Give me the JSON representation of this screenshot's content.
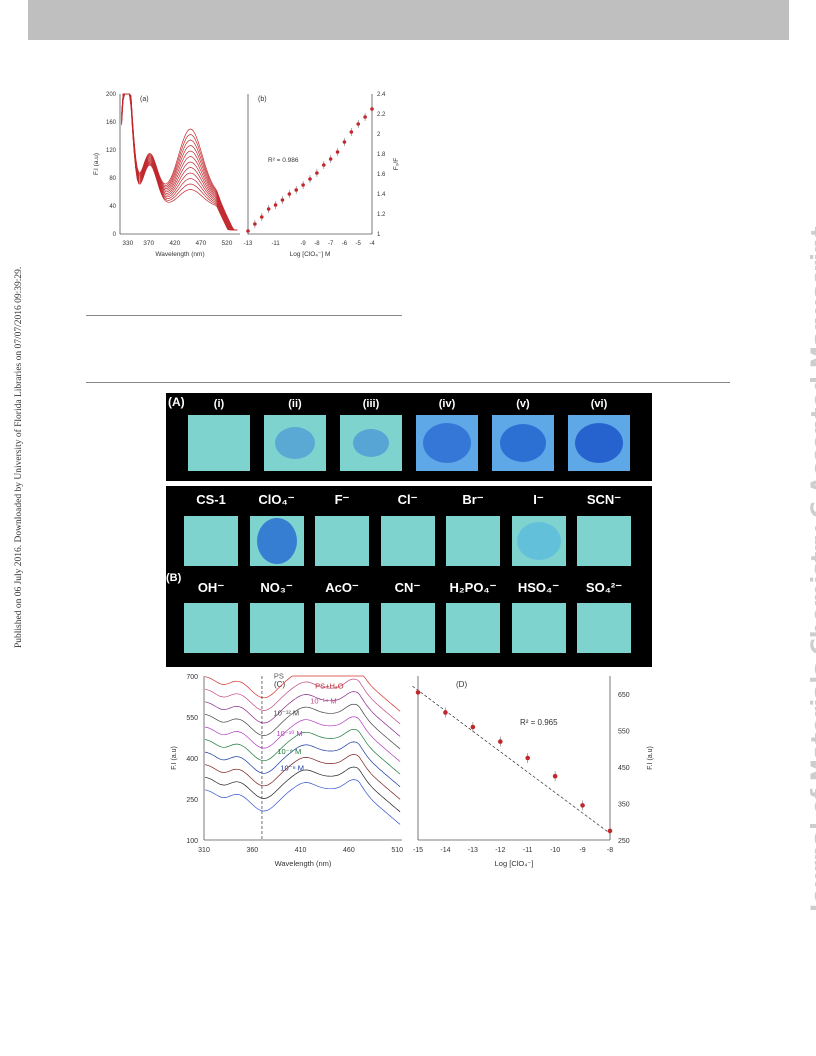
{
  "sidebar": {
    "published_note": "Published on 06 July 2016. Downloaded by University of Florida Libraries on 07/07/2016 09:39:29.",
    "journal_watermark": "Journal of Materials Chemistry C Accepted Manuscript"
  },
  "colors": {
    "header_bar": "#bfbfbf",
    "series_red": "#c0282d",
    "tile_cyan": "#7fd3cf",
    "spot_blue": "#3b87d9"
  },
  "figure_top": {
    "panel_a": {
      "tag": "(a)",
      "xlabel": "Wavelength (nm)",
      "ylabel": "F.I (a.u)",
      "xticks": [
        "330",
        "370",
        "420",
        "470",
        "520"
      ],
      "yticks": [
        "0",
        "40",
        "80",
        "120",
        "160",
        "200"
      ]
    },
    "panel_b": {
      "tag": "(b)",
      "xlabel": "Log [ClO₄⁻] M",
      "ylabel": "F₀/F",
      "xticks": [
        "-13",
        "-11",
        "-9",
        "-8",
        "-7",
        "-6",
        "-5",
        "-4"
      ],
      "yticks": [
        "1",
        "1.2",
        "1.4",
        "1.6",
        "1.8",
        "2",
        "2.2",
        "2.4"
      ],
      "r2": "R² = 0.986"
    }
  },
  "photos": {
    "panel_a_tag": "(A)",
    "row_a_labels": [
      "(i)",
      "(ii)",
      "(iii)",
      "(iv)",
      "(v)",
      "(vi)"
    ],
    "panel_b_tag": "(B)",
    "row_b1_labels": [
      "CS-1",
      "ClO₄⁻",
      "F⁻",
      "Cl⁻",
      "Br⁻",
      "I⁻",
      "SCN⁻"
    ],
    "row_b2_labels": [
      "OH⁻",
      "NO₃⁻",
      "AcO⁻",
      "CN⁻",
      "H₂PO₄⁻",
      "HSO₄⁻",
      "SO₄²⁻"
    ]
  },
  "figure_bottom": {
    "panel_c": {
      "tag": "(C)",
      "xlabel": "Wavelength (nm)",
      "ylabel": "F.I (a.u)",
      "xticks": [
        "310",
        "360",
        "410",
        "460",
        "510"
      ],
      "yticks": [
        "100",
        "250",
        "400",
        "550",
        "700"
      ],
      "curve_labels": [
        "PS",
        "PS+H₂O",
        "10⁻¹⁴ M",
        "10⁻¹² M",
        "10⁻¹⁰ M",
        "10⁻⁸ M",
        "10⁻⁶ M"
      ]
    },
    "panel_d": {
      "tag": "(D)",
      "xlabel": "Log [ClO₄⁻]",
      "ylabel": "F.I (a.u)",
      "xticks": [
        "-15",
        "-14",
        "-13",
        "-12",
        "-11",
        "-10",
        "-9",
        "-8"
      ],
      "yticks": [
        "250",
        "350",
        "450",
        "550",
        "650"
      ],
      "r2": "R² = 0.965"
    }
  },
  "chart_data": [
    {
      "type": "line",
      "title": "(a)",
      "xlabel": "Wavelength (nm)",
      "ylabel": "F.I (a.u)",
      "xlim": [
        315,
        545
      ],
      "ylim": [
        0,
        200
      ],
      "series_count": 12,
      "peak_a_x": 330,
      "peak_a_y": 200,
      "peak_b_x": 450,
      "peak_b_y_range": [
        80,
        150
      ]
    },
    {
      "type": "scatter",
      "title": "(b)",
      "xlabel": "Log [ClO₄⁻] M",
      "ylabel": "F₀/F",
      "xlim": [
        -13,
        -4
      ],
      "ylim": [
        1,
        2.4
      ],
      "x": [
        -13,
        -12.5,
        -12,
        -11.5,
        -11,
        -10.5,
        -10,
        -9.5,
        -9,
        -8.5,
        -8,
        -7.5,
        -7,
        -6.5,
        -6,
        -5.5,
        -5,
        -4.5,
        -4
      ],
      "y": [
        1.03,
        1.1,
        1.17,
        1.25,
        1.29,
        1.34,
        1.4,
        1.44,
        1.49,
        1.55,
        1.61,
        1.69,
        1.75,
        1.82,
        1.92,
        2.02,
        2.1,
        2.17,
        2.25
      ],
      "annotation": "R² = 0.986"
    },
    {
      "type": "line",
      "title": "(C)",
      "xlabel": "Wavelength (nm)",
      "ylabel": "F.I (a.u)",
      "xlim": [
        310,
        515
      ],
      "ylim": [
        100,
        700
      ],
      "series": [
        {
          "name": "PS",
          "offset": 690
        },
        {
          "name": "PS+H₂O",
          "offset": 645
        },
        {
          "name": "10⁻¹⁴ M",
          "offset": 600
        },
        {
          "name": "10⁻¹² M",
          "offset": 555
        },
        {
          "name": "10⁻¹⁰ M",
          "offset": 480
        },
        {
          "name": "10⁻⁸ M",
          "offset": 410
        },
        {
          "name": "10⁻⁶ M",
          "offset": 340
        }
      ]
    },
    {
      "type": "scatter",
      "title": "(D)",
      "xlabel": "Log [ClO₄⁻]",
      "ylabel": "F.I (a.u)",
      "xlim": [
        -15,
        -8
      ],
      "ylim": [
        250,
        700
      ],
      "x": [
        -15,
        -14,
        -13,
        -12,
        -11,
        -10,
        -9,
        -8
      ],
      "y": [
        655,
        600,
        560,
        520,
        475,
        425,
        345,
        275
      ],
      "annotation": "R² = 0.965"
    }
  ]
}
